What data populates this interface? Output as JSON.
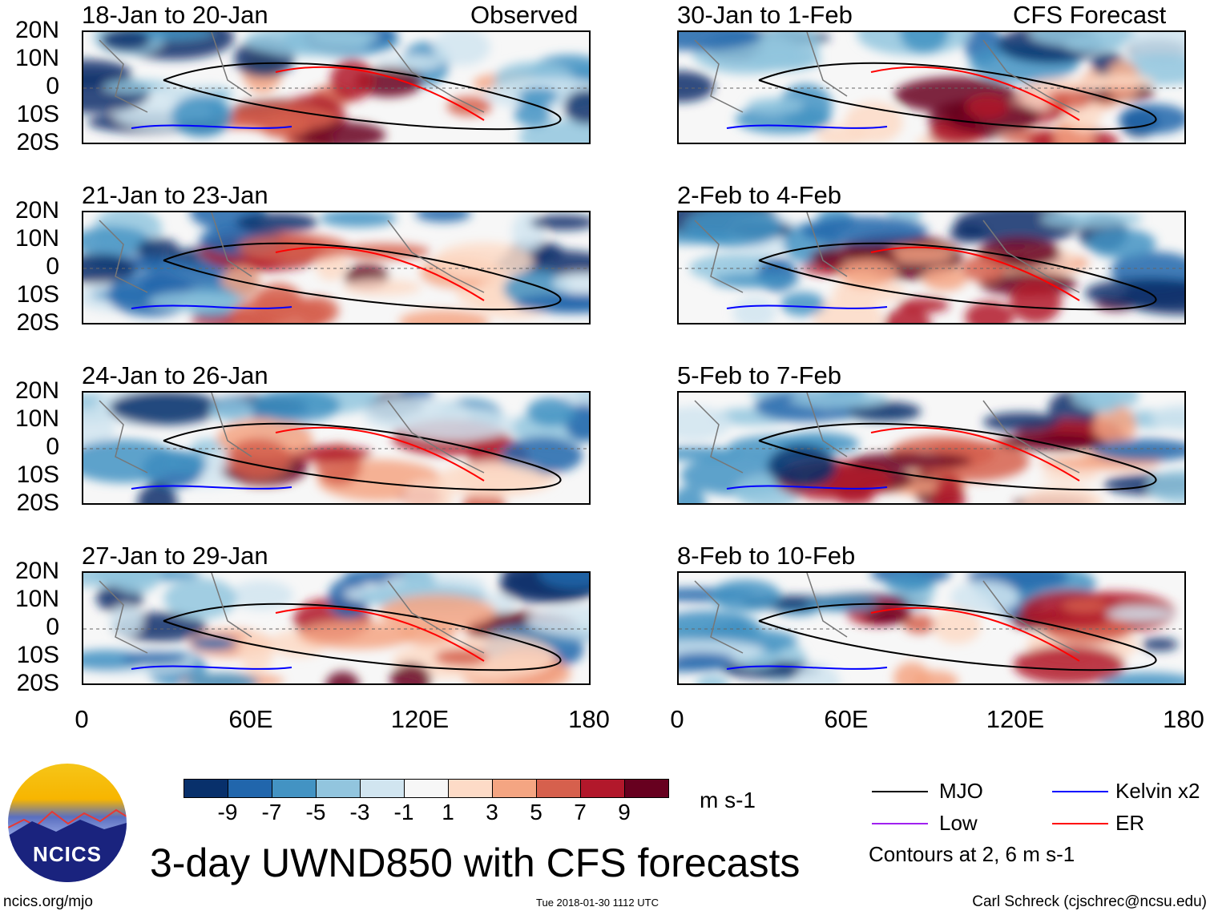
{
  "header": {
    "left_label": "Observed",
    "right_label": "CFS Forecast"
  },
  "left_panels": [
    {
      "title": "18-Jan to 20-Jan"
    },
    {
      "title": "21-Jan to 23-Jan"
    },
    {
      "title": "24-Jan to 26-Jan"
    },
    {
      "title": "27-Jan to 29-Jan"
    }
  ],
  "right_panels": [
    {
      "title": "30-Jan to 1-Feb"
    },
    {
      "title": "2-Feb to 4-Feb"
    },
    {
      "title": "5-Feb to 7-Feb"
    },
    {
      "title": "8-Feb to 10-Feb"
    }
  ],
  "lat_labels": [
    "20N",
    "10N",
    "0",
    "10S",
    "20S"
  ],
  "lon_labels": [
    "0",
    "60E",
    "120E",
    "180"
  ],
  "colorbar": {
    "colors": [
      "#08306b",
      "#2166ac",
      "#4393c3",
      "#92c5de",
      "#d1e5f0",
      "#f7f7f7",
      "#fddbc7",
      "#f4a582",
      "#d6604d",
      "#b2182b",
      "#67001f"
    ],
    "ticks": [
      "-9",
      "-7",
      "-5",
      "-3",
      "-1",
      "1",
      "3",
      "5",
      "7",
      "9"
    ],
    "units": "m s-1"
  },
  "legend": {
    "items": [
      {
        "label": "MJO",
        "color": "#000000"
      },
      {
        "label": "Kelvin x2",
        "color": "#0000ff"
      },
      {
        "label": "Low",
        "color": "#a020f0"
      },
      {
        "label": "ER",
        "color": "#ff0000"
      }
    ],
    "note": "Contours at 2, 6 m s-1"
  },
  "logo": {
    "text": "NCICS"
  },
  "title": "3-day UWND850 with CFS forecasts",
  "footer": {
    "url": "ncics.org/mjo",
    "timestamp": "Tue 2018-01-30 1112 UTC",
    "author": "Carl Schreck (cjschrec@ncsu.edu)"
  }
}
